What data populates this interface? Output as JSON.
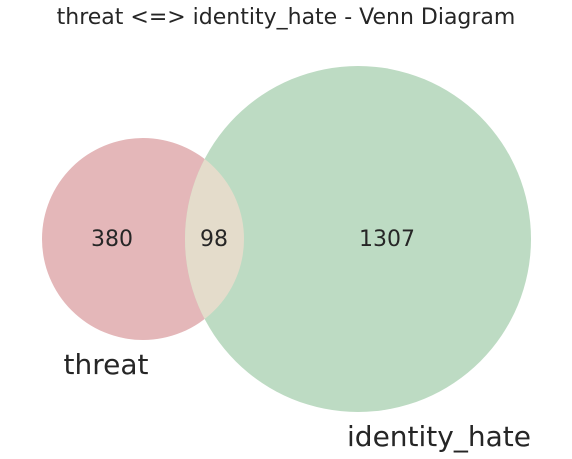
{
  "title": "threat <=> identity_hate - Venn Diagram",
  "sets": {
    "left": {
      "label": "threat",
      "color": "#e4b7b9"
    },
    "right": {
      "label": "identity_hate",
      "color": "#bddbc3"
    },
    "overlap_color": "#e4dccb"
  },
  "counts": {
    "left_only": "380",
    "intersection": "98",
    "right_only": "1307"
  },
  "chart_data": {
    "type": "venn",
    "sets": [
      "threat",
      "identity_hate"
    ],
    "regions": [
      {
        "sets": [
          "threat"
        ],
        "value": 380
      },
      {
        "sets": [
          "threat",
          "identity_hate"
        ],
        "value": 98
      },
      {
        "sets": [
          "identity_hate"
        ],
        "value": 1307
      }
    ],
    "title": "threat <=> identity_hate - Venn Diagram"
  }
}
